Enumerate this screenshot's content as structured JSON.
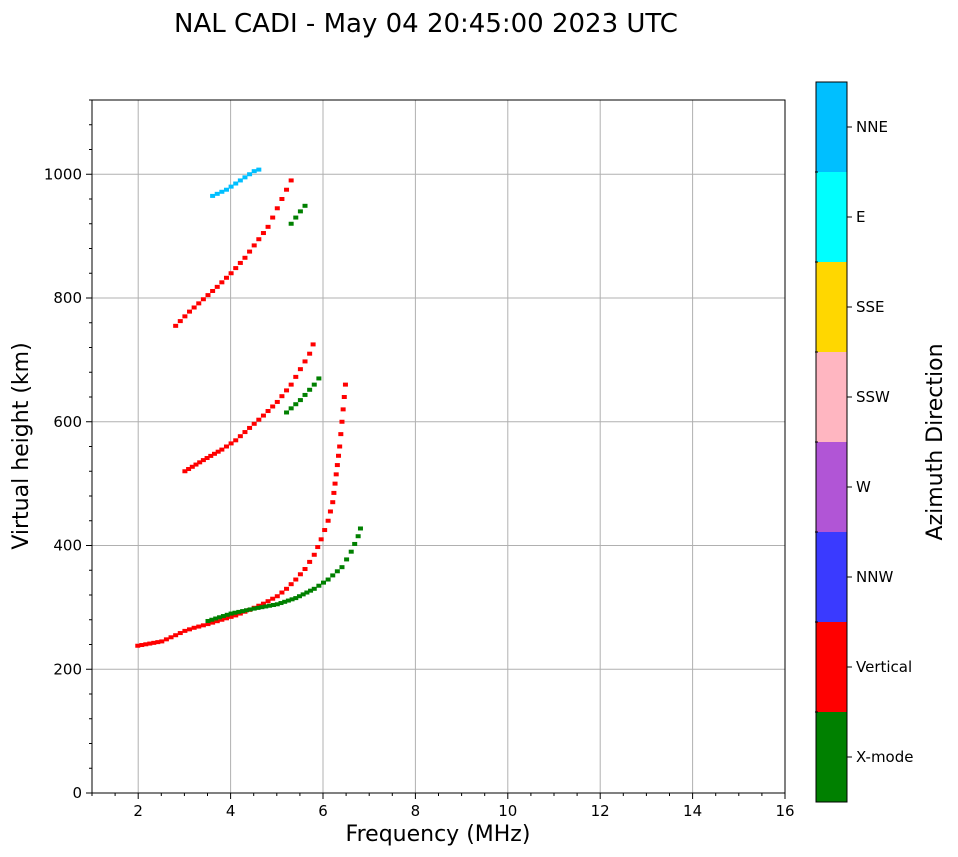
{
  "chart_data": {
    "type": "scatter",
    "title": "NAL CADI - May 04 20:45:00 2023 UTC",
    "xlabel": "Frequency (MHz)",
    "ylabel": "Virtual height (km)",
    "xlim": [
      1,
      16
    ],
    "ylim": [
      0,
      1120
    ],
    "xticks": [
      2,
      4,
      6,
      8,
      10,
      12,
      14,
      16
    ],
    "yticks": [
      0,
      200,
      400,
      600,
      800,
      1000
    ],
    "grid": true,
    "colorbar": {
      "label": "Azimuth Direction",
      "categories": [
        {
          "name": "X-mode",
          "color": "#008000"
        },
        {
          "name": "Vertical",
          "color": "#ff0000"
        },
        {
          "name": "NNW",
          "color": "#3a3aff"
        },
        {
          "name": "W",
          "color": "#b155d6"
        },
        {
          "name": "SSW",
          "color": "#ffb6c1"
        },
        {
          "name": "SSE",
          "color": "#ffd700"
        },
        {
          "name": "E",
          "color": "#00ffff"
        },
        {
          "name": "NNE",
          "color": "#00bfff"
        }
      ]
    },
    "traces": [
      {
        "name": "Vertical",
        "points": [
          [
            1.98,
            238
          ],
          [
            2.5,
            245
          ],
          [
            2.8,
            255
          ],
          [
            3.0,
            262
          ],
          [
            3.2,
            267
          ],
          [
            3.5,
            273
          ],
          [
            3.8,
            280
          ],
          [
            4.1,
            287
          ],
          [
            4.4,
            296
          ],
          [
            4.7,
            306
          ],
          [
            5.0,
            318
          ],
          [
            5.2,
            330
          ],
          [
            5.4,
            345
          ],
          [
            5.6,
            362
          ],
          [
            5.8,
            385
          ],
          [
            5.95,
            410
          ],
          [
            6.1,
            440
          ],
          [
            6.2,
            470
          ],
          [
            6.25,
            500
          ],
          [
            6.3,
            530
          ],
          [
            6.35,
            560
          ],
          [
            6.4,
            600
          ],
          [
            6.45,
            640
          ],
          [
            6.5,
            680
          ]
        ]
      },
      {
        "name": "X-mode",
        "points": [
          [
            3.5,
            278
          ],
          [
            4.0,
            290
          ],
          [
            4.5,
            298
          ],
          [
            5.0,
            305
          ],
          [
            5.4,
            315
          ],
          [
            5.8,
            330
          ],
          [
            6.1,
            345
          ],
          [
            6.4,
            365
          ],
          [
            6.6,
            390
          ],
          [
            6.75,
            415
          ],
          [
            6.85,
            440
          ]
        ]
      },
      {
        "name": "Vertical",
        "points": [
          [
            3.0,
            520
          ],
          [
            3.4,
            538
          ],
          [
            3.8,
            555
          ],
          [
            4.1,
            570
          ],
          [
            4.4,
            590
          ],
          [
            4.7,
            610
          ],
          [
            5.0,
            632
          ],
          [
            5.3,
            660
          ],
          [
            5.5,
            685
          ],
          [
            5.7,
            710
          ],
          [
            5.85,
            740
          ]
        ]
      },
      {
        "name": "X-mode",
        "points": [
          [
            5.2,
            615
          ],
          [
            5.5,
            635
          ],
          [
            5.8,
            660
          ],
          [
            6.0,
            680
          ]
        ]
      },
      {
        "name": "Vertical",
        "points": [
          [
            2.8,
            755
          ],
          [
            3.1,
            778
          ],
          [
            3.4,
            798
          ],
          [
            3.7,
            818
          ],
          [
            4.0,
            840
          ],
          [
            4.3,
            865
          ],
          [
            4.6,
            895
          ],
          [
            4.8,
            915
          ],
          [
            5.0,
            945
          ],
          [
            5.2,
            975
          ],
          [
            5.4,
            1005
          ]
        ]
      },
      {
        "name": "X-mode",
        "points": [
          [
            5.3,
            920
          ],
          [
            5.5,
            940
          ],
          [
            5.7,
            958
          ]
        ]
      },
      {
        "name": "NNE",
        "points": [
          [
            3.6,
            965
          ],
          [
            3.9,
            975
          ],
          [
            4.2,
            990
          ],
          [
            4.5,
            1005
          ],
          [
            4.7,
            1010
          ]
        ]
      }
    ]
  }
}
